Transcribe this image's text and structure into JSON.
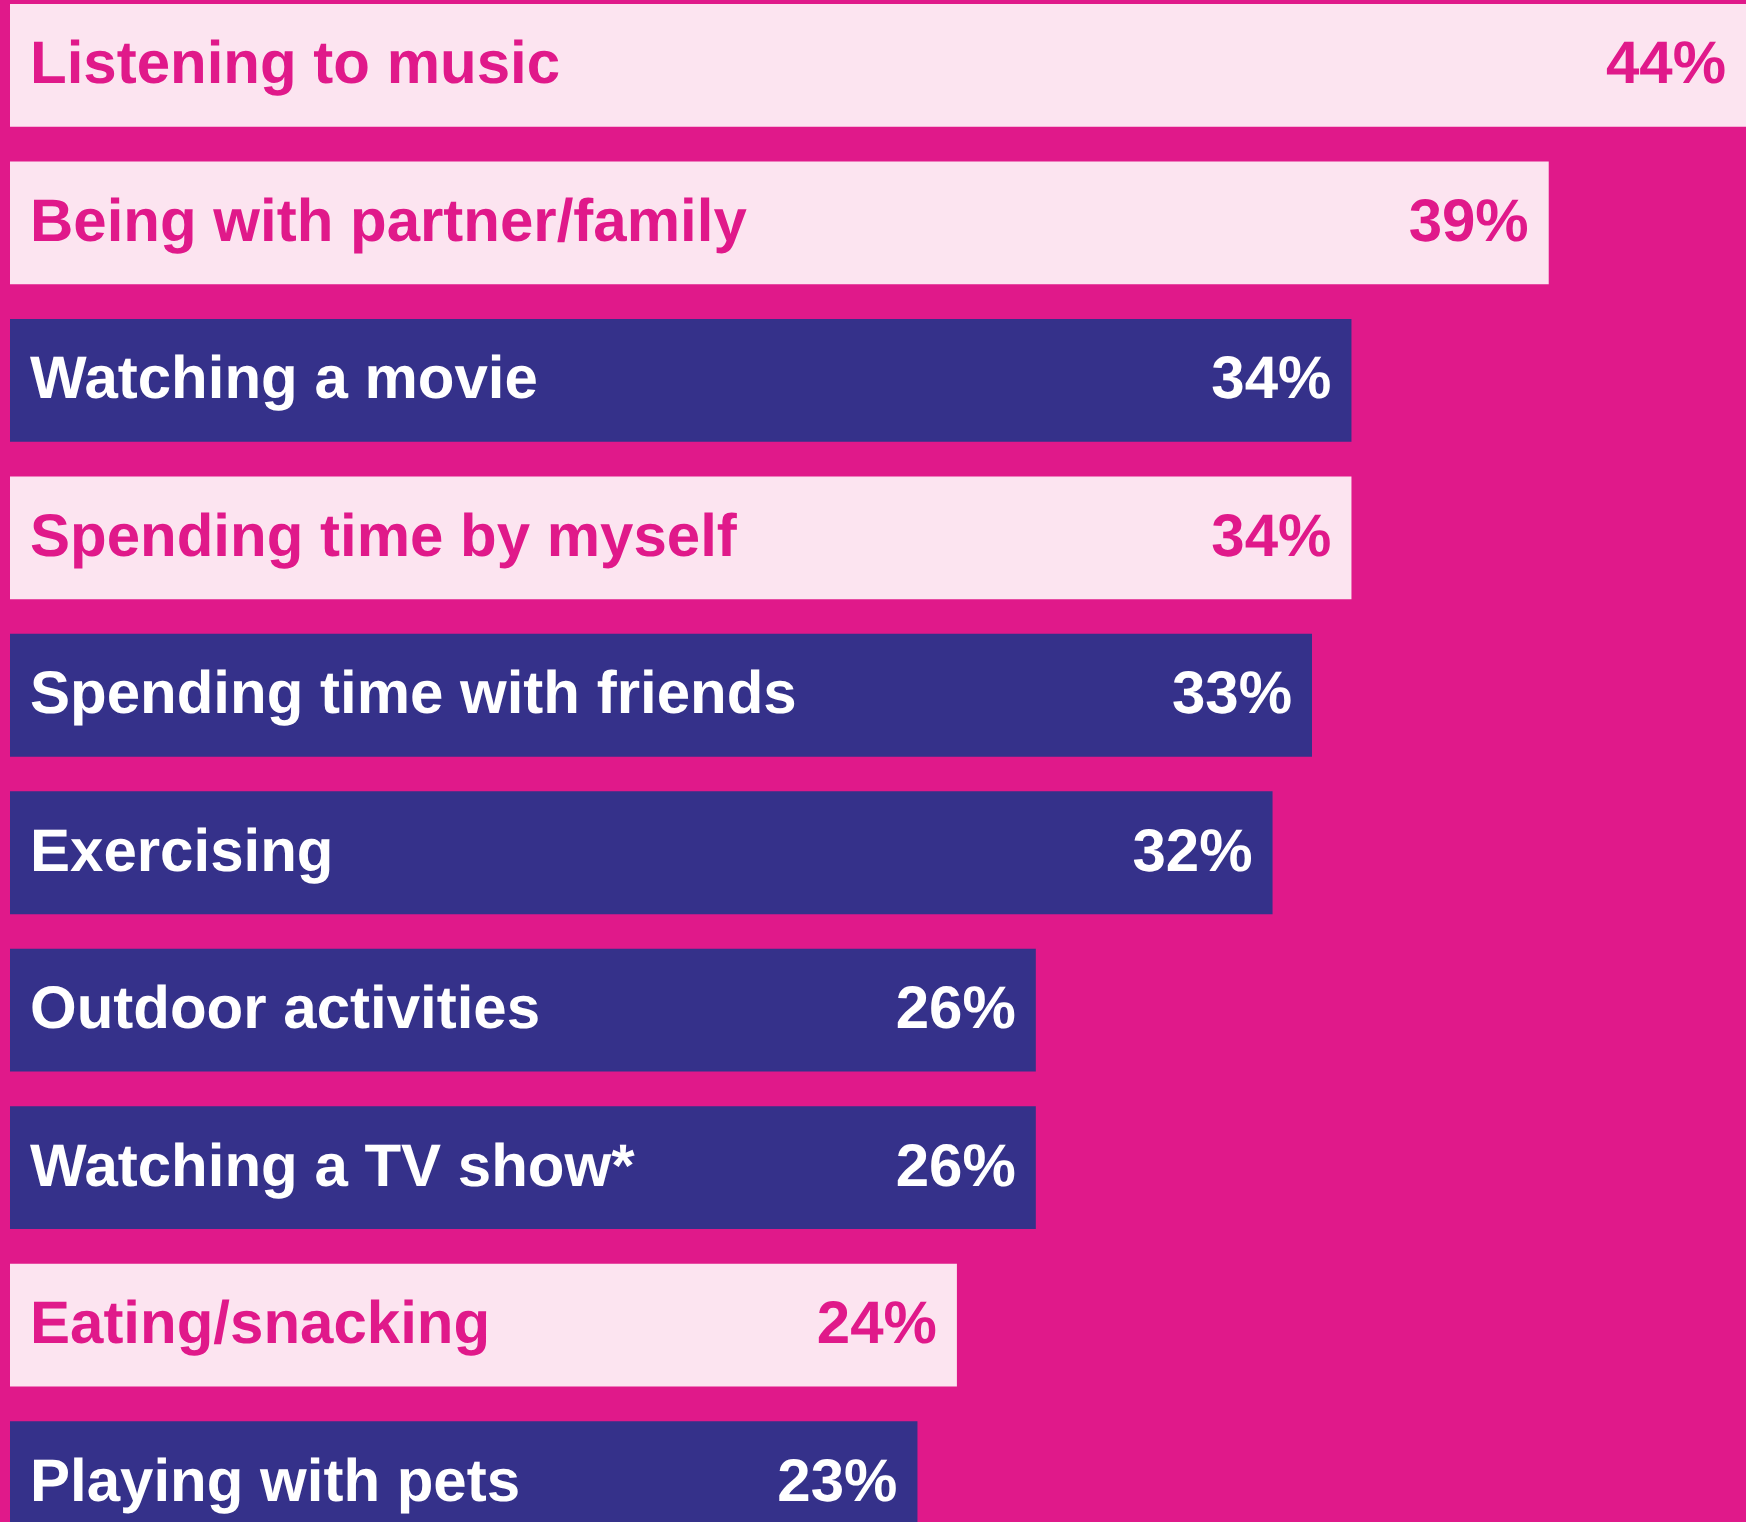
{
  "chart_data": {
    "type": "bar",
    "orientation": "horizontal",
    "categories": [
      "Listening to music",
      "Being with partner/family",
      "Watching a movie",
      "Spending time by myself",
      "Spending time with friends",
      "Exercising",
      "Outdoor activities",
      "Watching a TV show*",
      "Eating/snacking",
      "Playing with pets"
    ],
    "values": [
      44,
      39,
      34,
      34,
      33,
      32,
      26,
      26,
      24,
      23
    ],
    "value_labels": [
      "44%",
      "39%",
      "34%",
      "34%",
      "33%",
      "32%",
      "26%",
      "26%",
      "24%",
      "23%"
    ],
    "colors": [
      "#fce4f0",
      "#fce4f0",
      "#35318a",
      "#fce4f0",
      "#35318a",
      "#35318a",
      "#35318a",
      "#35318a",
      "#fce4f0",
      "#35318a"
    ]
  }
}
